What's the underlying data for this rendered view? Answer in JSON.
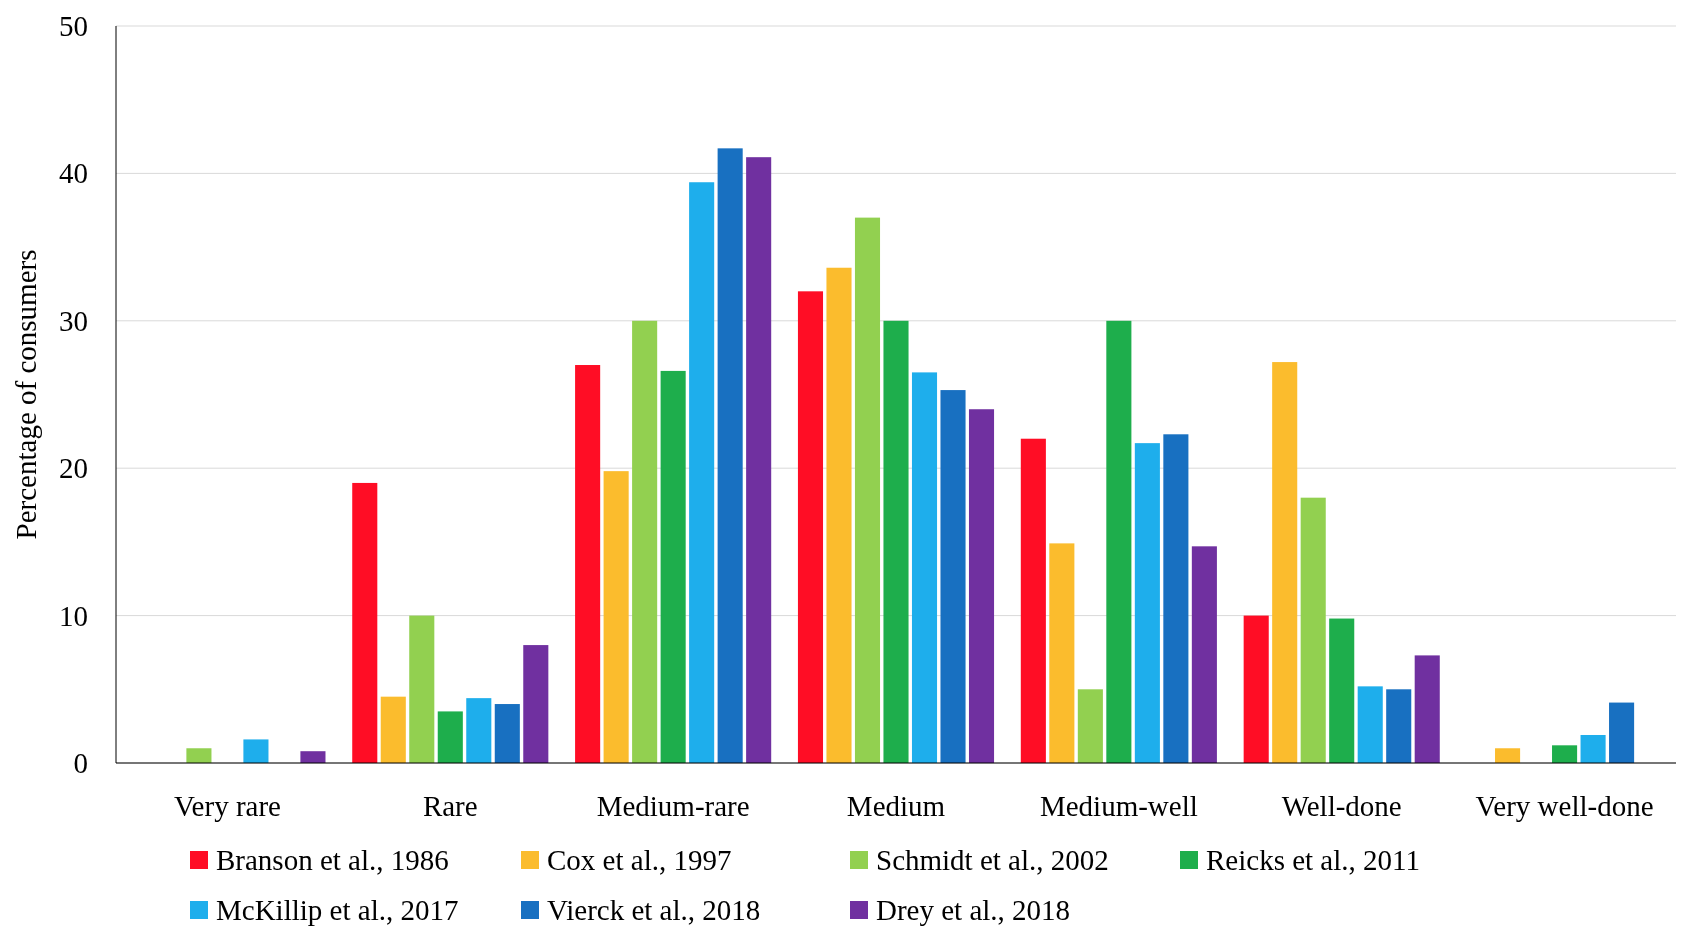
{
  "chart_data": {
    "type": "bar",
    "ylabel": "Percentage of consumers",
    "categories": [
      "Very rare",
      "Rare",
      "Medium-rare",
      "Medium",
      "Medium-well",
      "Well-done",
      "Very well-done"
    ],
    "series": [
      {
        "name": "Branson et al., 1986",
        "color": "#ff0d25",
        "values": [
          null,
          19,
          27,
          32,
          22,
          10,
          null
        ]
      },
      {
        "name": "Cox et al., 1997",
        "color": "#fbbc2d",
        "values": [
          null,
          4.5,
          19.8,
          33.6,
          14.9,
          27.2,
          1
        ]
      },
      {
        "name": "Schmidt et al., 2002",
        "color": "#92d050",
        "values": [
          1,
          10,
          30,
          37,
          5,
          18,
          null
        ]
      },
      {
        "name": "Reicks et al., 2011",
        "color": "#1eae4c",
        "values": [
          null,
          3.5,
          26.6,
          30,
          30,
          9.8,
          1.2
        ]
      },
      {
        "name": "McKillip et al., 2017",
        "color": "#1eaeec",
        "values": [
          1.6,
          4.4,
          39.4,
          26.5,
          21.7,
          5.2,
          1.9
        ]
      },
      {
        "name": "Vierck et al., 2018",
        "color": "#1870c1",
        "values": [
          null,
          4,
          41.7,
          25.3,
          22.3,
          5,
          4.1
        ]
      },
      {
        "name": "Drey et al., 2018",
        "color": "#7030a0",
        "values": [
          0.8,
          8,
          41.1,
          24,
          14.7,
          7.3,
          null
        ]
      }
    ],
    "ylim": [
      0,
      50
    ],
    "yticks": [
      0,
      10,
      20,
      30,
      40,
      50
    ],
    "grid": "y",
    "legend": "bottom"
  }
}
